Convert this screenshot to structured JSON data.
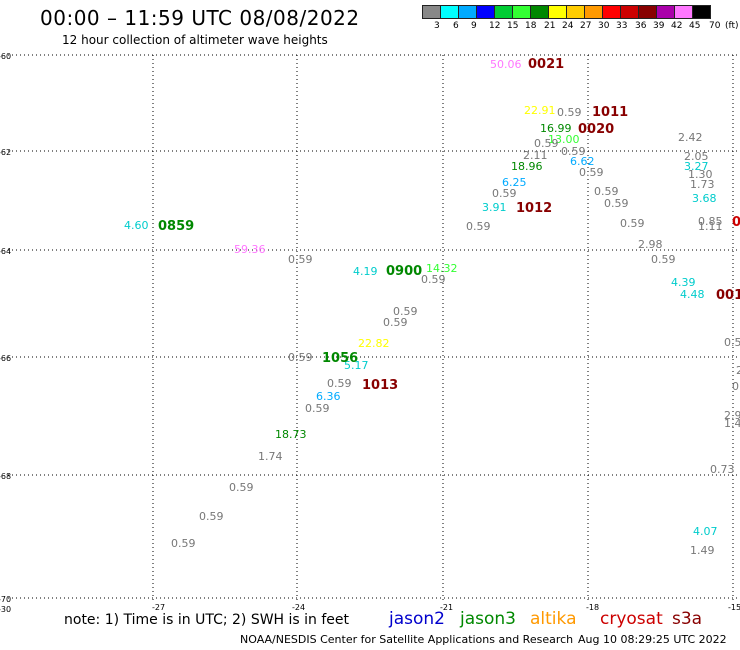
{
  "header": {
    "title": "00:00 – 11:59 UTC 08/08/2022",
    "subtitle": "12 hour collection of altimeter wave heights"
  },
  "legend": {
    "colors": [
      "#888888",
      "#00ffff",
      "#00aaff",
      "#0000ff",
      "#00cc33",
      "#33ff33",
      "#008800",
      "#ffff00",
      "#ffcc00",
      "#ff9900",
      "#ff0000",
      "#cc0000",
      "#880000",
      "#aa00aa",
      "#ff77ff",
      "#000000"
    ],
    "labels": [
      "3",
      "6",
      "9",
      "12",
      "15",
      "18",
      "21",
      "24",
      "27",
      "30",
      "33",
      "36",
      "39",
      "42",
      "45",
      "70",
      "(ft)"
    ]
  },
  "axes": {
    "lat_labels": [
      "-60",
      "-62",
      "-64",
      "-66",
      "-68",
      "-70"
    ],
    "lat_extra": "-30",
    "lon_labels": [
      "-27",
      "-24",
      "-21",
      "-18",
      "-15"
    ]
  },
  "map_data": {
    "heights": [
      {
        "v": "50.06",
        "c": "#ff77ff"
      },
      {
        "v": "22.91",
        "c": "#ffff00"
      },
      {
        "v": "0.59",
        "c": "#777777"
      },
      {
        "v": "16.99",
        "c": "#008800"
      },
      {
        "v": "13.00",
        "c": "#33ff33"
      },
      {
        "v": "0.59",
        "c": "#777777"
      },
      {
        "v": "2.11",
        "c": "#777777"
      },
      {
        "v": "0.59",
        "c": "#777777"
      },
      {
        "v": "18.96",
        "c": "#008800"
      },
      {
        "v": "6.62",
        "c": "#00aaff"
      },
      {
        "v": "0.59",
        "c": "#777777"
      },
      {
        "v": "6.25",
        "c": "#00aaff"
      },
      {
        "v": "0.59",
        "c": "#777777"
      },
      {
        "v": "3.91",
        "c": "#00cccc"
      },
      {
        "v": "0.59",
        "c": "#777777"
      },
      {
        "v": "0.59",
        "c": "#777777"
      },
      {
        "v": "0.59",
        "c": "#777777"
      },
      {
        "v": "0.59",
        "c": "#777777"
      },
      {
        "v": "2.42",
        "c": "#777777"
      },
      {
        "v": "2.05",
        "c": "#777777"
      },
      {
        "v": "3.27",
        "c": "#00cccc"
      },
      {
        "v": "1.30",
        "c": "#777777"
      },
      {
        "v": "1.73",
        "c": "#777777"
      },
      {
        "v": "3.68",
        "c": "#00cccc"
      },
      {
        "v": "0.85",
        "c": "#777777"
      },
      {
        "v": "1.11",
        "c": "#777777"
      },
      {
        "v": "2.98",
        "c": "#777777"
      },
      {
        "v": "0.59",
        "c": "#777777"
      },
      {
        "v": "4.39",
        "c": "#00cccc"
      },
      {
        "v": "4.48",
        "c": "#00cccc"
      },
      {
        "v": "4.60",
        "c": "#00cccc"
      },
      {
        "v": "59.36",
        "c": "#ff77ff"
      },
      {
        "v": "0.59",
        "c": "#777777"
      },
      {
        "v": "4.19",
        "c": "#00cccc"
      },
      {
        "v": "14.32",
        "c": "#33ff33"
      },
      {
        "v": "0.59",
        "c": "#777777"
      },
      {
        "v": "0.59",
        "c": "#777777"
      },
      {
        "v": "0.59",
        "c": "#777777"
      },
      {
        "v": "22.82",
        "c": "#ffff00"
      },
      {
        "v": "0.59",
        "c": "#777777"
      },
      {
        "v": "5.17",
        "c": "#00cccc"
      },
      {
        "v": "0.59",
        "c": "#777777"
      },
      {
        "v": "6.36",
        "c": "#00aaff"
      },
      {
        "v": "0.59",
        "c": "#777777"
      },
      {
        "v": "18.73",
        "c": "#008800"
      },
      {
        "v": "1.74",
        "c": "#777777"
      },
      {
        "v": "0.59",
        "c": "#777777"
      },
      {
        "v": "0.59",
        "c": "#777777"
      },
      {
        "v": "0.59",
        "c": "#777777"
      },
      {
        "v": "0.5",
        "c": "#777777"
      },
      {
        "v": "2",
        "c": "#777777"
      },
      {
        "v": "0.",
        "c": "#777777"
      },
      {
        "v": "2.9",
        "c": "#777777"
      },
      {
        "v": "1.4",
        "c": "#777777"
      },
      {
        "v": "0.73",
        "c": "#777777"
      },
      {
        "v": "4.07",
        "c": "#00cccc"
      },
      {
        "v": "1.49",
        "c": "#777777"
      }
    ],
    "times": [
      {
        "v": "0021",
        "c": "#880000"
      },
      {
        "v": "1011",
        "c": "#880000"
      },
      {
        "v": "0020",
        "c": "#880000"
      },
      {
        "v": "1012",
        "c": "#880000"
      },
      {
        "v": "0859",
        "c": "#008800"
      },
      {
        "v": "0900",
        "c": "#008800"
      },
      {
        "v": "1056",
        "c": "#008800"
      },
      {
        "v": "1013",
        "c": "#880000"
      },
      {
        "v": "0",
        "c": "#cc0000"
      },
      {
        "v": "001",
        "c": "#880000"
      }
    ]
  },
  "footer": {
    "note": "note: 1) Time is in UTC; 2) SWH is in feet",
    "satellites": [
      {
        "name": "jason2",
        "color": "#0000cc"
      },
      {
        "name": "jason3",
        "color": "#008800"
      },
      {
        "name": "altika",
        "color": "#ff9900"
      },
      {
        "name": "cryosat",
        "color": "#cc0000"
      },
      {
        "name": "s3a",
        "color": "#880000"
      }
    ],
    "credit": "NOAA/NESDIS Center for Satellite Applications and Research",
    "generated": "Aug 10 08:29:25 UTC 2022"
  }
}
